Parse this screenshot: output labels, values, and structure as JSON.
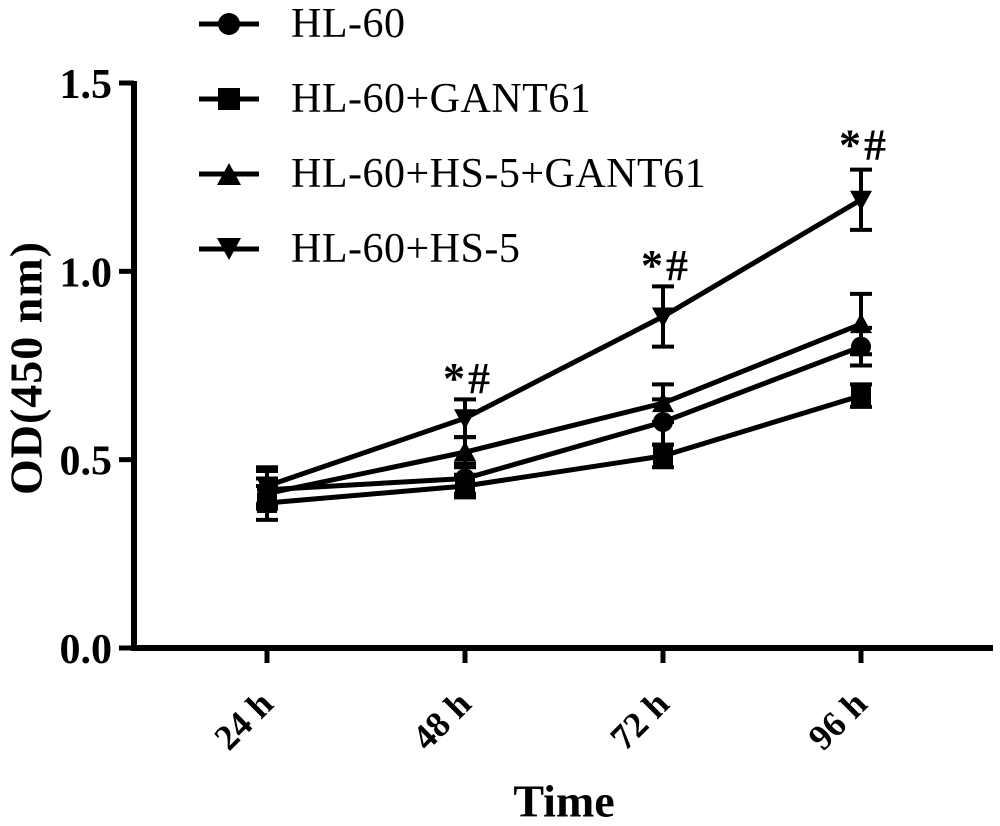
{
  "figure": {
    "background": "#ffffff",
    "ink": "#000000"
  },
  "chart_data": {
    "type": "line",
    "title": "",
    "xlabel": "Time",
    "ylabel": "OD(450 nm)",
    "x_values": [
      24,
      48,
      72,
      96
    ],
    "x_tick_labels": [
      "24 h",
      "48 h",
      "72 h",
      "96 h"
    ],
    "y_tick_values": [
      0.0,
      0.5,
      1.0,
      1.5
    ],
    "y_tick_labels": [
      "0.0",
      "0.5",
      "1.0",
      "1.5"
    ],
    "ylim": [
      0.0,
      1.5
    ],
    "grid": false,
    "error_bars": true,
    "legend_position": "top-left",
    "series": [
      {
        "name": "HL-60",
        "marker": "circle",
        "values": [
          0.42,
          0.45,
          0.6,
          0.8
        ],
        "errors": [
          0.05,
          0.04,
          0.06,
          0.05
        ]
      },
      {
        "name": "HL-60+GANT61",
        "marker": "square",
        "values": [
          0.385,
          0.43,
          0.51,
          0.67
        ],
        "errors": [
          0.045,
          0.03,
          0.03,
          0.03
        ]
      },
      {
        "name": "HL-60+HS-5+GANT61",
        "marker": "triangle-up",
        "values": [
          0.41,
          0.52,
          0.65,
          0.86
        ],
        "errors": [
          0.04,
          0.04,
          0.05,
          0.08
        ]
      },
      {
        "name": "HL-60+HS-5",
        "marker": "triangle-down",
        "values": [
          0.43,
          0.61,
          0.88,
          1.19
        ],
        "errors": [
          0.05,
          0.05,
          0.08,
          0.08
        ]
      }
    ],
    "annotations": [
      {
        "text": "*#",
        "x": 48,
        "od": 0.72
      },
      {
        "text": "*#",
        "x": 72,
        "od": 1.02
      },
      {
        "text": "*#",
        "x": 96,
        "od": 1.34
      }
    ]
  }
}
